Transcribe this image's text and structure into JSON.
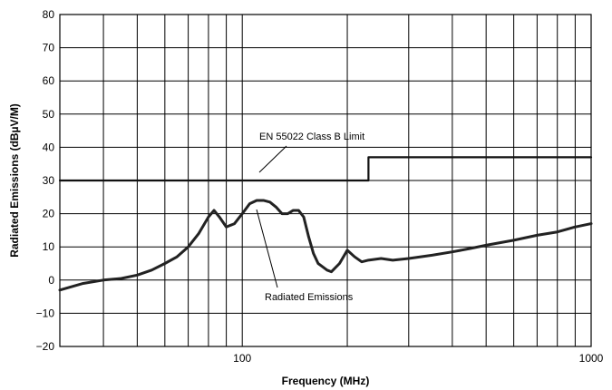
{
  "chart_data": {
    "type": "line",
    "xlabel": "Frequency (MHz)",
    "ylabel": "Radiated Emissions (dBµV/M)",
    "x_scale": "log",
    "xlim": [
      30,
      1000
    ],
    "ylim": [
      -20,
      80
    ],
    "grid": true,
    "x_tick_labels": [
      "100",
      "1000"
    ],
    "y_ticks": [
      -20,
      -10,
      0,
      10,
      20,
      30,
      40,
      50,
      60,
      70,
      80
    ],
    "y_tick_labels": [
      "−20",
      "−10",
      "0",
      "10",
      "20",
      "30",
      "40",
      "50",
      "60",
      "70",
      "80"
    ],
    "annotations": {
      "limit_label": "EN 55022 Class B Limit",
      "emissions_label": "Radiated Emissions"
    },
    "series": [
      {
        "name": "EN 55022 Class B Limit",
        "x": [
          30,
          230,
          230,
          1000
        ],
        "y": [
          30,
          30,
          37,
          37
        ]
      },
      {
        "name": "Radiated Emissions",
        "x": [
          30,
          35,
          40,
          45,
          50,
          55,
          60,
          65,
          70,
          75,
          80,
          83,
          86,
          90,
          95,
          100,
          105,
          110,
          115,
          120,
          125,
          130,
          135,
          140,
          145,
          150,
          155,
          160,
          165,
          170,
          175,
          180,
          190,
          200,
          210,
          220,
          230,
          250,
          270,
          300,
          350,
          400,
          450,
          500,
          600,
          700,
          800,
          900,
          1000
        ],
        "y": [
          -3,
          -1,
          0,
          0.5,
          1.5,
          3,
          5,
          7,
          10,
          14,
          19,
          21,
          19,
          16,
          17,
          20,
          23,
          24,
          24,
          23.5,
          22,
          20,
          20,
          21,
          21,
          19,
          13,
          8,
          5,
          4,
          3,
          2.5,
          5,
          9,
          7,
          5.5,
          6,
          6.5,
          6,
          6.5,
          7.5,
          8.5,
          9.5,
          10.5,
          12,
          13.5,
          14.5,
          16,
          17
        ]
      }
    ]
  }
}
